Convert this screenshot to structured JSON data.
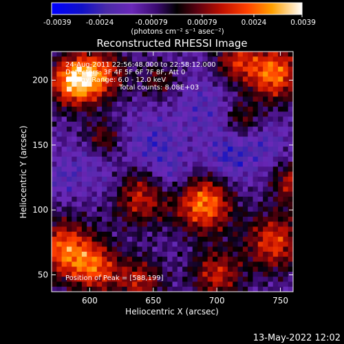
{
  "chart_data": {
    "type": "heatmap",
    "title": "Reconstructed RHESSI Image",
    "xlabel": "Heliocentric X (arcsec)",
    "ylabel": "Heliocentric Y (arcsec)",
    "xlim": [
      570,
      760
    ],
    "ylim": [
      37,
      222
    ],
    "x_ticks": [
      600,
      650,
      700,
      750
    ],
    "y_ticks": [
      50,
      100,
      150,
      200
    ],
    "colorbar": {
      "range": [
        -0.0039,
        0.0039
      ],
      "tick_values": [
        -0.0039,
        -0.0024,
        -0.00079,
        0.00079,
        0.0024,
        0.0039
      ],
      "tick_labels": [
        "-0.0039",
        "-0.0024",
        "-0.00079",
        "0.00079",
        "0.0024",
        "0.0039"
      ],
      "unit_label": "(photons cm⁻² s⁻¹ asec⁻²)"
    },
    "info": {
      "time_range": "24-Aug-2011 22:56:48.000 to 22:58:12.000",
      "detectors": "Detectors: 3F 4F 5F 6F 7F 8F, Att 0",
      "energy_range": "Energy Range: 6.0 - 12.0 keV",
      "total_counts": "Total counts: 8.08E+03",
      "peak": "Position of Peak = [588,199]"
    },
    "grid_cols": 48,
    "grid_rows": 48,
    "hotspots": [
      {
        "x": 588,
        "y": 199,
        "value": 0.0039,
        "radius": 14
      },
      {
        "x": 610,
        "y": 205,
        "value": 0.0022,
        "radius": 14
      },
      {
        "x": 745,
        "y": 205,
        "value": 0.0033,
        "radius": 15
      },
      {
        "x": 715,
        "y": 215,
        "value": 0.002,
        "radius": 12
      },
      {
        "x": 690,
        "y": 105,
        "value": 0.0034,
        "radius": 16
      },
      {
        "x": 640,
        "y": 110,
        "value": 0.0022,
        "radius": 16
      },
      {
        "x": 580,
        "y": 70,
        "value": 0.003,
        "radius": 16
      },
      {
        "x": 605,
        "y": 55,
        "value": 0.0025,
        "radius": 14
      },
      {
        "x": 745,
        "y": 75,
        "value": 0.0026,
        "radius": 16
      },
      {
        "x": 700,
        "y": 50,
        "value": 0.0022,
        "radius": 14
      },
      {
        "x": 640,
        "y": 45,
        "value": 0.002,
        "radius": 13
      },
      {
        "x": 610,
        "y": 155,
        "value": 0.0015,
        "radius": 10
      },
      {
        "x": 760,
        "y": 120,
        "value": 0.002,
        "radius": 12
      },
      {
        "x": 720,
        "y": 170,
        "value": 0.0012,
        "radius": 10
      },
      {
        "x": 655,
        "y": 200,
        "value": 0.0012,
        "radius": 10
      },
      {
        "x": 710,
        "y": 140,
        "value": -0.0018,
        "radius": 14
      },
      {
        "x": 665,
        "y": 125,
        "value": -0.0015,
        "radius": 12
      },
      {
        "x": 650,
        "y": 150,
        "value": -0.0015,
        "radius": 15
      },
      {
        "x": 690,
        "y": 180,
        "value": -0.0012,
        "radius": 14
      },
      {
        "x": 740,
        "y": 150,
        "value": -0.0012,
        "radius": 10
      },
      {
        "x": 580,
        "y": 125,
        "value": -0.0012,
        "radius": 10
      },
      {
        "x": 615,
        "y": 120,
        "value": -0.001,
        "radius": 10
      },
      {
        "x": 600,
        "y": 140,
        "value": -0.001,
        "radius": 10
      }
    ]
  },
  "footer": {
    "date": "13-May-2022 12:02"
  }
}
